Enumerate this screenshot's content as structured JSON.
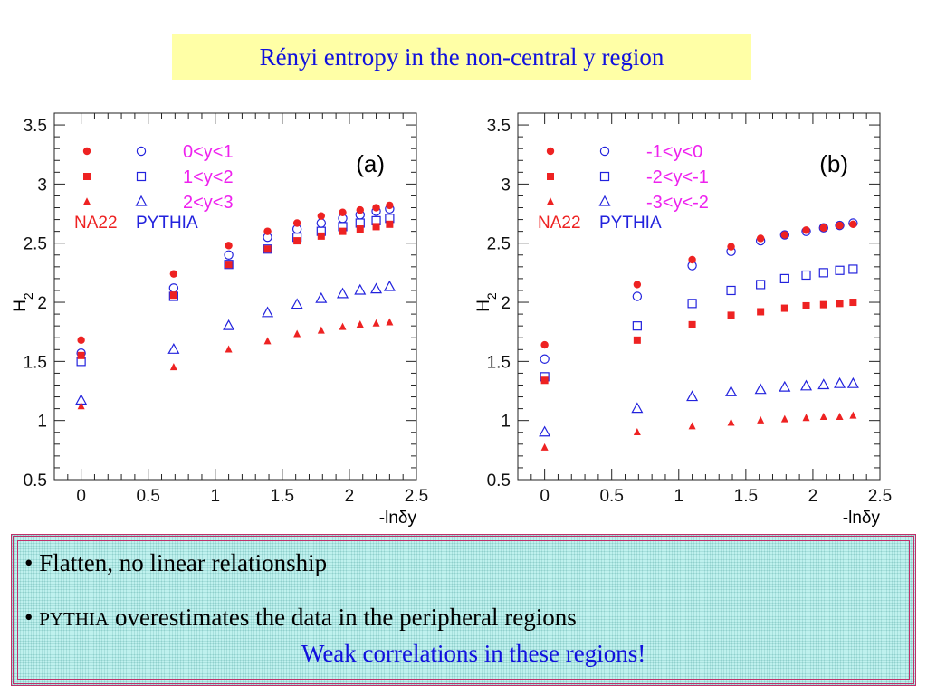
{
  "slide": {
    "title": "Rényi entropy in the non-central y region",
    "bullets": [
      {
        "prefix": "• ",
        "name": "",
        "text": "Flatten, no linear relationship"
      },
      {
        "prefix": "• ",
        "name": "PYTHIA",
        "text": " overestimates the data in the peripheral regions"
      }
    ],
    "conclusion": "Weak correlations in these regions!"
  },
  "colors": {
    "data": "#ee2222",
    "model": "#2222dd",
    "legend_text": "#ee22ee"
  },
  "chart_data": [
    {
      "type": "scatter",
      "panel_label": "(a)",
      "xlabel": "-lnδy",
      "ylabel": "H2",
      "xlim": [
        -0.2,
        2.5
      ],
      "ylim": [
        0.5,
        3.6
      ],
      "xticks": [
        "0",
        "0.5",
        "1",
        "1.5",
        "2",
        "2.5"
      ],
      "yticks": [
        "0.5",
        "1",
        "1.5",
        "2",
        "2.5",
        "3",
        "3.5"
      ],
      "group_labels": {
        "data": "NA22",
        "model": "PYTHIA"
      },
      "x": [
        0,
        0.69,
        1.1,
        1.39,
        1.61,
        1.79,
        1.95,
        2.08,
        2.2,
        2.3
      ],
      "series": [
        {
          "name": "0<y<1",
          "marker": "circle",
          "na22": [
            1.68,
            2.24,
            2.48,
            2.6,
            2.67,
            2.73,
            2.76,
            2.78,
            2.8,
            2.82
          ],
          "pythia": [
            1.57,
            2.12,
            2.4,
            2.55,
            2.62,
            2.67,
            2.71,
            2.74,
            2.77,
            2.79
          ]
        },
        {
          "name": "1<y<2",
          "marker": "square",
          "na22": [
            1.55,
            2.06,
            2.32,
            2.45,
            2.52,
            2.56,
            2.6,
            2.62,
            2.64,
            2.66
          ],
          "pythia": [
            1.5,
            2.05,
            2.32,
            2.45,
            2.55,
            2.6,
            2.64,
            2.67,
            2.69,
            2.71
          ]
        },
        {
          "name": "2<y<3",
          "marker": "triangle",
          "na22": [
            1.12,
            1.45,
            1.6,
            1.67,
            1.73,
            1.76,
            1.79,
            1.81,
            1.82,
            1.83
          ],
          "pythia": [
            1.17,
            1.6,
            1.8,
            1.91,
            1.98,
            2.03,
            2.07,
            2.1,
            2.11,
            2.13
          ]
        }
      ]
    },
    {
      "type": "scatter",
      "panel_label": "(b)",
      "xlabel": "-lnδy",
      "ylabel": "H2",
      "xlim": [
        -0.2,
        2.5
      ],
      "ylim": [
        0.5,
        3.6
      ],
      "xticks": [
        "0",
        "0.5",
        "1",
        "1.5",
        "2",
        "2.5"
      ],
      "yticks": [
        "0.5",
        "1",
        "1.5",
        "2",
        "2.5",
        "3",
        "3.5"
      ],
      "group_labels": {
        "data": "NA22",
        "model": "PYTHIA"
      },
      "x": [
        0,
        0.69,
        1.1,
        1.39,
        1.61,
        1.79,
        1.95,
        2.08,
        2.2,
        2.3
      ],
      "series": [
        {
          "name": "-1<y<0",
          "marker": "circle",
          "na22": [
            1.64,
            2.15,
            2.36,
            2.47,
            2.54,
            2.57,
            2.61,
            2.63,
            2.65,
            2.66
          ],
          "pythia": [
            1.52,
            2.05,
            2.31,
            2.43,
            2.52,
            2.57,
            2.6,
            2.63,
            2.65,
            2.67
          ]
        },
        {
          "name": "-2<y<-1",
          "marker": "square",
          "na22": [
            1.34,
            1.68,
            1.81,
            1.89,
            1.92,
            1.95,
            1.97,
            1.98,
            1.99,
            2.0
          ],
          "pythia": [
            1.37,
            1.8,
            1.99,
            2.1,
            2.15,
            2.2,
            2.23,
            2.25,
            2.27,
            2.28
          ]
        },
        {
          "name": "-3<y<-2",
          "marker": "triangle",
          "na22": [
            0.77,
            0.9,
            0.95,
            0.98,
            1.0,
            1.01,
            1.02,
            1.03,
            1.03,
            1.04
          ],
          "pythia": [
            0.9,
            1.1,
            1.2,
            1.24,
            1.26,
            1.28,
            1.29,
            1.3,
            1.31,
            1.31
          ]
        }
      ]
    }
  ]
}
